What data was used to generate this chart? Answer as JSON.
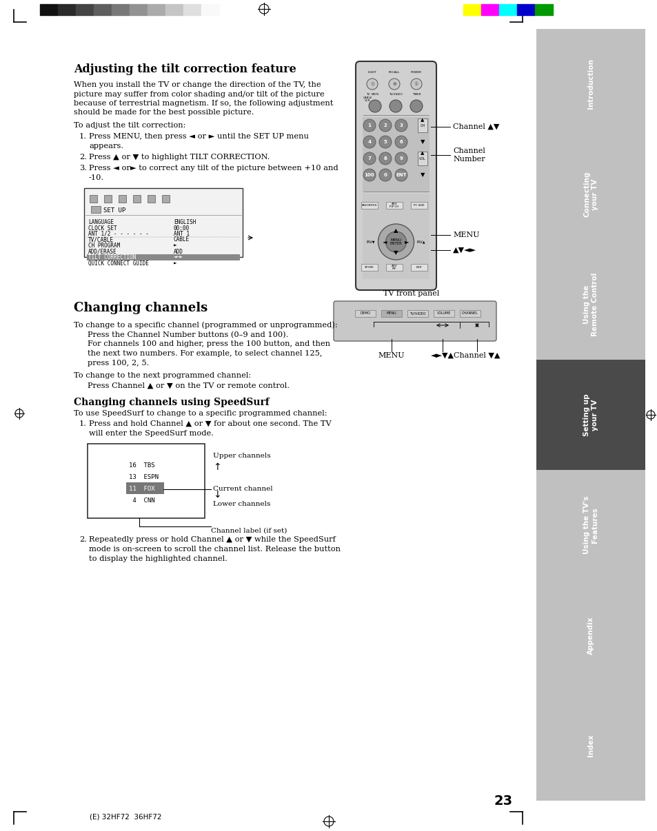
{
  "page_bg": "#ffffff",
  "page_number": "23",
  "footer_text": "(E) 32HF72  36HF72",
  "top_color_bars_left": [
    "#111111",
    "#2a2a2a",
    "#444444",
    "#5e5e5e",
    "#787878",
    "#929292",
    "#ababab",
    "#c5c5c5",
    "#dfdfdf",
    "#f9f9f9"
  ],
  "top_color_bars_right": [
    "#ffff00",
    "#ff00ff",
    "#00ffff",
    "#0000cc",
    "#009900"
  ],
  "sidebar_sections": [
    {
      "label": "Introduction",
      "active": false,
      "color": "#c0c0c0"
    },
    {
      "label": "Connecting\nyour TV",
      "active": false,
      "color": "#c0c0c0"
    },
    {
      "label": "Using the\nRemote Control",
      "active": false,
      "color": "#c0c0c0"
    },
    {
      "label": "Setting up\nyour TV",
      "active": true,
      "color": "#4a4a4a"
    },
    {
      "label": "Using the TV's\nFeatures",
      "active": false,
      "color": "#c0c0c0"
    },
    {
      "label": "Appendix",
      "active": false,
      "color": "#c0c0c0"
    },
    {
      "label": "Index",
      "active": false,
      "color": "#c0c0c0"
    }
  ],
  "section1_title": "Adjusting the tilt correction feature",
  "section1_intro": [
    "When you install the TV or change the direction of the TV, the",
    "picture may suffer from color shading and/or tilt of the picture",
    "because of terrestrial magnetism. If so, the following adjustment",
    "should be made for the best possible picture."
  ],
  "section1_sub": "To adjust the tilt correction:",
  "section1_steps": [
    [
      "Press MENU, then press ◄ or ► until the SET UP menu",
      "appears."
    ],
    [
      "Press ▲ or ▼ to highlight TILT CORRECTION."
    ],
    [
      "Press ◄ or► to correct any tilt of the picture between +10 and",
      "-10."
    ]
  ],
  "section2_title": "Changing channels",
  "section2_intro": "To change to a specific channel (programmed or unprogrammed):",
  "section2_body": [
    "Press the Channel Number buttons (0–9 and 100).",
    "For channels 100 and higher, press the 100 button, and then",
    "the next two numbers. For example, to select channel 125,",
    "press 100, 2, 5."
  ],
  "section2_next": "To change to the next programmed channel:",
  "section2_next_body": "Press Channel ▲ or ▼ on the TV or remote control.",
  "section2_sub_title": "Changing channels using SpeedSurf",
  "section2_sub_intro": "To use SpeedSurf to change to a specific programmed channel:",
  "section2_sub_steps": [
    [
      "Press and hold Channel ▲ or ▼ for about one second. The TV",
      "will enter the SpeedSurf mode."
    ],
    [
      "Repeatedly press or hold Channel ▲ or ▼ while the SpeedSurf",
      "mode is on-screen to scroll the channel list. Release the button",
      "to display the highlighted channel."
    ]
  ],
  "speedsurf_channels": [
    {
      "num": "16",
      "name": "TBS",
      "highlight": false
    },
    {
      "num": "13",
      "name": "ESPN",
      "highlight": false
    },
    {
      "num": "11",
      "name": "FOX",
      "highlight": true
    },
    {
      "num": "4",
      "name": "CNN",
      "highlight": false
    }
  ],
  "speedsurf_labels": {
    "upper": "Upper channels",
    "up_arrow": "↑",
    "current": "Current channel",
    "down_arrow": "↓",
    "lower": "Lower channels",
    "channel_label": "Channel label (if set)"
  },
  "remote_labels": {
    "channel_av": "Channel ▲▼",
    "channel_number": "Channel\nNumber",
    "menu": "MENU",
    "arrows": "▲▼◄►"
  },
  "front_panel_label": "TV front panel",
  "front_panel_buttons": [
    "DEMO",
    "MENU",
    "TV/VIDEO",
    "VOLUME",
    "CHANNEL"
  ],
  "front_panel_bottom_labels": [
    "MENU",
    "◄►▼▲",
    "Channel ▼▲"
  ]
}
